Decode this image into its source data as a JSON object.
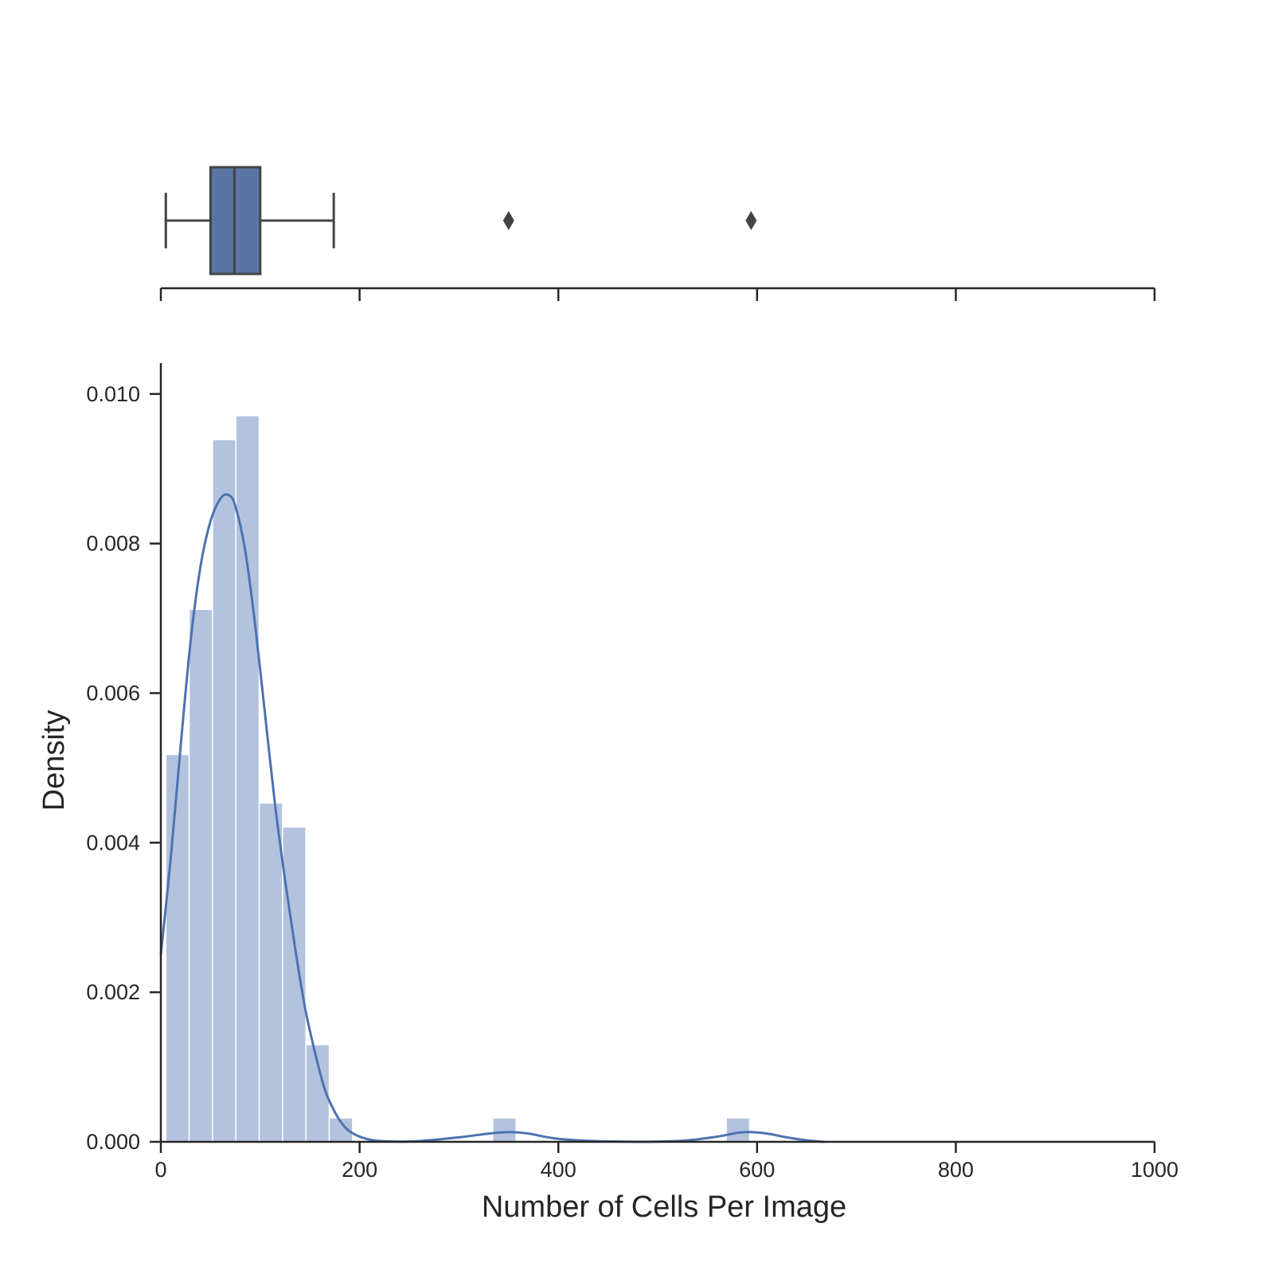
{
  "chart_data": [
    {
      "type": "box",
      "panel": "top",
      "whisker_low": 5,
      "q1": 50,
      "median": 74,
      "q3": 100,
      "whisker_high": 174,
      "outliers": [
        350,
        594
      ],
      "xlim": [
        0,
        1000
      ],
      "x_ticks": [
        0,
        200,
        400,
        600,
        800,
        1000
      ],
      "color": "#5875a4"
    },
    {
      "type": "bar",
      "subtype": "histogram_with_kde",
      "panel": "bottom",
      "xlabel": "Number of Cells Per Image",
      "ylabel": "Density",
      "xlim": [
        0,
        1000
      ],
      "ylim": [
        0,
        0.0102
      ],
      "x_ticks": [
        "0",
        "200",
        "400",
        "600",
        "800",
        "1000"
      ],
      "y_ticks": [
        "0.000",
        "0.002",
        "0.004",
        "0.006",
        "0.008",
        "0.010"
      ],
      "bins": [
        {
          "x0": 5,
          "x1": 28.5,
          "density": 0.00518
        },
        {
          "x0": 28.5,
          "x1": 52,
          "density": 0.00712
        },
        {
          "x0": 52,
          "x1": 75.5,
          "density": 0.00939
        },
        {
          "x0": 75.5,
          "x1": 99,
          "density": 0.00971
        },
        {
          "x0": 99,
          "x1": 122.5,
          "density": 0.00453
        },
        {
          "x0": 122.5,
          "x1": 146,
          "density": 0.00421
        },
        {
          "x0": 146,
          "x1": 169.5,
          "density": 0.0013
        },
        {
          "x0": 169.5,
          "x1": 193,
          "density": 0.00032
        },
        {
          "x0": 193,
          "x1": 216.5,
          "density": 0
        },
        {
          "x0": 216.5,
          "x1": 240,
          "density": 0
        },
        {
          "x0": 240,
          "x1": 263.5,
          "density": 0
        },
        {
          "x0": 263.5,
          "x1": 287,
          "density": 0
        },
        {
          "x0": 287,
          "x1": 310.5,
          "density": 0
        },
        {
          "x0": 310.5,
          "x1": 334,
          "density": 0
        },
        {
          "x0": 334,
          "x1": 357.5,
          "density": 0.00032
        },
        {
          "x0": 357.5,
          "x1": 381,
          "density": 0
        },
        {
          "x0": 381,
          "x1": 404.5,
          "density": 0
        },
        {
          "x0": 404.5,
          "x1": 428,
          "density": 0
        },
        {
          "x0": 428,
          "x1": 451.5,
          "density": 0
        },
        {
          "x0": 451.5,
          "x1": 475,
          "density": 0
        },
        {
          "x0": 475,
          "x1": 498.5,
          "density": 0
        },
        {
          "x0": 498.5,
          "x1": 522,
          "density": 0
        },
        {
          "x0": 522,
          "x1": 545.5,
          "density": 0
        },
        {
          "x0": 545.5,
          "x1": 569,
          "density": 0
        },
        {
          "x0": 569,
          "x1": 592.5,
          "density": 0.00032
        }
      ],
      "kde": {
        "x": [
          0,
          10,
          20,
          30,
          40,
          50,
          60,
          68,
          75,
          85,
          95,
          105,
          115,
          125,
          135,
          145,
          155,
          165,
          175,
          185,
          195,
          210,
          230,
          260,
          300,
          330,
          350,
          370,
          400,
          450,
          520,
          560,
          580,
          594,
          610,
          630,
          650,
          668
        ],
        "y": [
          0.0025,
          0.0038,
          0.0053,
          0.0067,
          0.0077,
          0.0083,
          0.0086,
          0.00865,
          0.0085,
          0.0079,
          0.0069,
          0.0057,
          0.0045,
          0.0035,
          0.0026,
          0.0018,
          0.0012,
          0.0007,
          0.0004,
          0.0002,
          0.0001,
          3e-05,
          5e-06,
          1e-05,
          6e-05,
          0.00011,
          0.00013,
          0.00011,
          4e-05,
          5e-06,
          1e-05,
          7e-05,
          0.00012,
          0.00013,
          0.00011,
          6e-05,
          2e-05,
          0.0
        ]
      },
      "bar_color": "#b3c3de",
      "line_color": "#4c72b0"
    }
  ]
}
